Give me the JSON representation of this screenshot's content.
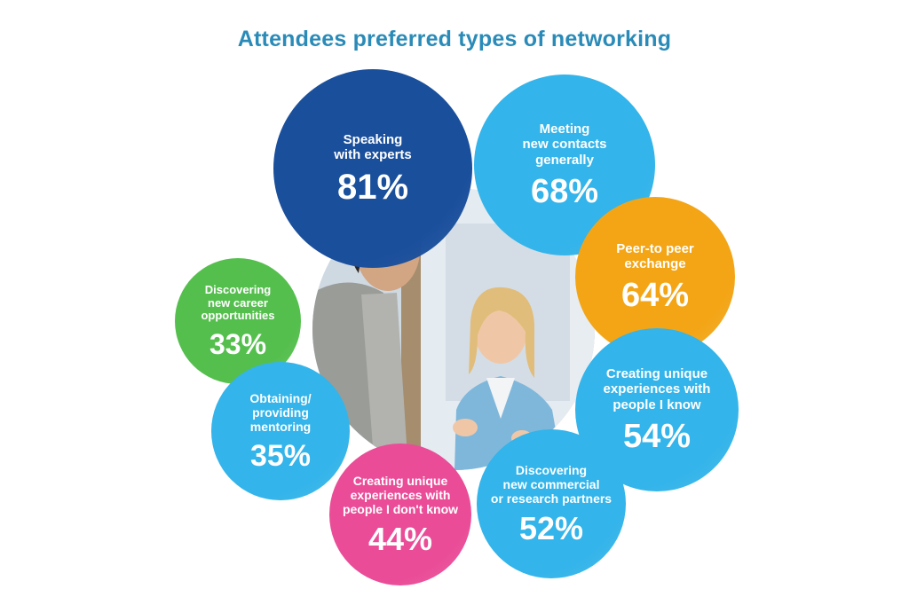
{
  "title": "Attendees preferred types of networking",
  "chart_data": {
    "type": "bubble",
    "title": "Attendees preferred types of networking",
    "unit": "%",
    "categories": [
      "Speaking with experts",
      "Meeting new contacts generally",
      "Peer-to peer exchange",
      "Creating unique experiences with people I know",
      "Discovering new commercial or research partners",
      "Creating unique experiences with people I don't know",
      "Obtaining/ providing mentoring",
      "Discovering new career opportunities"
    ],
    "values": [
      81,
      68,
      64,
      54,
      52,
      44,
      35,
      33
    ]
  },
  "bubbles": [
    {
      "label": "Speaking\nwith experts",
      "value": "81%",
      "color": "#1a4f9c"
    },
    {
      "label": "Meeting\nnew contacts\ngenerally",
      "value": "68%",
      "color": "#33b4ea"
    },
    {
      "label": "Peer-to peer\nexchange",
      "value": "64%",
      "color": "#f3a516"
    },
    {
      "label": "Creating unique\nexperiences with\npeople I know",
      "value": "54%",
      "color": "#33b4ea"
    },
    {
      "label": "Discovering\nnew commercial\nor research partners",
      "value": "52%",
      "color": "#33b4ea"
    },
    {
      "label": "Creating unique\nexperiences with\npeople I don't know",
      "value": "44%",
      "color": "#ea4c97"
    },
    {
      "label": "Obtaining/\nproviding\nmentoring",
      "value": "35%",
      "color": "#33b4ea"
    },
    {
      "label": "Discovering\nnew career\nopportunities",
      "value": "33%",
      "color": "#55bf4e"
    }
  ],
  "photo": {
    "icon": "networking-photo"
  }
}
